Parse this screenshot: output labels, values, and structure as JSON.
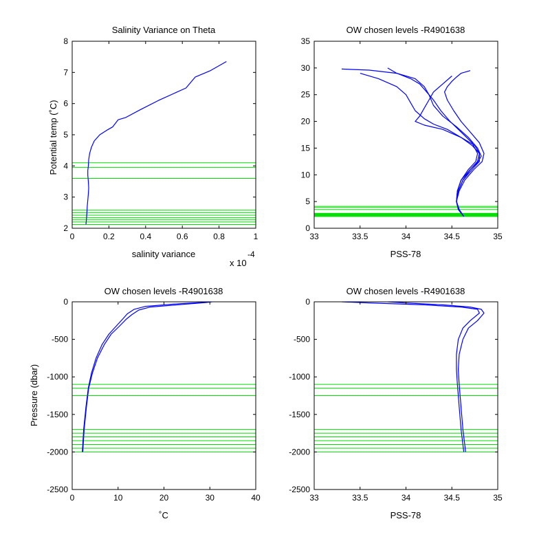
{
  "chart_data": [
    {
      "type": "line",
      "title": "Salinity Variance on Theta",
      "xlabel": "salinity variance",
      "xscale_note": "x 10",
      "xscale_exp": "-4",
      "ylabel": "Potential temp (˚C)",
      "xlim": [
        0,
        1
      ],
      "ylim": [
        2,
        8
      ],
      "xticks": [
        0,
        0.2,
        0.4,
        0.6,
        0.8,
        1
      ],
      "yticks": [
        2,
        3,
        4,
        5,
        6,
        7,
        8
      ],
      "xtick_labels": [
        "0",
        "0.2",
        "0.4",
        "0.6",
        "0.8",
        "1"
      ],
      "ytick_labels": [
        "2",
        "3",
        "4",
        "5",
        "6",
        "7",
        "8"
      ],
      "y_reversed": false,
      "grid": false,
      "hlines": [
        4.1,
        3.95,
        3.6,
        2.58,
        2.5,
        2.42,
        2.34,
        2.27,
        2.2,
        2.12
      ],
      "series": [
        {
          "color": "#0000ff",
          "x": [
            0.075,
            0.078,
            0.08,
            0.082,
            0.085,
            0.088,
            0.09,
            0.088,
            0.085,
            0.085,
            0.088,
            0.09,
            0.095,
            0.105,
            0.12,
            0.15,
            0.19,
            0.22,
            0.25,
            0.29,
            0.37,
            0.47,
            0.62,
            0.67,
            0.75,
            0.84
          ],
          "y": [
            2.12,
            2.3,
            2.5,
            2.7,
            2.9,
            3.1,
            3.3,
            3.5,
            3.7,
            3.85,
            4.0,
            4.2,
            4.4,
            4.6,
            4.8,
            5.0,
            5.15,
            5.25,
            5.48,
            5.55,
            5.8,
            6.1,
            6.5,
            6.85,
            7.05,
            7.35
          ]
        }
      ]
    },
    {
      "type": "line",
      "title": "OW chosen levels -R4901638",
      "xlabel": "PSS-78",
      "ylabel": "",
      "xlim": [
        33,
        35
      ],
      "ylim": [
        0,
        35
      ],
      "xticks": [
        33,
        33.5,
        34,
        34.5,
        35
      ],
      "yticks": [
        0,
        5,
        10,
        15,
        20,
        25,
        30,
        35
      ],
      "xtick_labels": [
        "33",
        "33.5",
        "34",
        "34.5",
        "35"
      ],
      "ytick_labels": [
        "0",
        "5",
        "10",
        "15",
        "20",
        "25",
        "30",
        "35"
      ],
      "y_reversed": false,
      "grid": false,
      "hlines": [
        4.1,
        3.9,
        3.5,
        2.8,
        2.7,
        2.6,
        2.5,
        2.4,
        2.3,
        2.2
      ],
      "series": [
        {
          "color": "#0000ff",
          "x": [
            34.63,
            34.58,
            34.55,
            34.56,
            34.6,
            34.7,
            34.78,
            34.82,
            34.78,
            34.68,
            34.55,
            34.4,
            34.3,
            34.25,
            34.2,
            34.1,
            33.9,
            33.6,
            33.3
          ],
          "y": [
            2.2,
            3.5,
            5.0,
            7.0,
            9.0,
            11.0,
            12.3,
            13.5,
            15.0,
            17.0,
            19.0,
            21.0,
            23.0,
            25.0,
            26.5,
            28.0,
            29.0,
            29.6,
            29.8
          ]
        },
        {
          "color": "#0000ff",
          "x": [
            34.63,
            34.57,
            34.55,
            34.58,
            34.64,
            34.74,
            34.83,
            34.85,
            34.8,
            34.7,
            34.6,
            34.52,
            34.45,
            34.42,
            34.45,
            34.5,
            34.55,
            34.6,
            34.7
          ],
          "y": [
            2.2,
            3.5,
            5.0,
            7.0,
            9.0,
            11.0,
            12.5,
            14.0,
            16.0,
            18.0,
            20.0,
            22.0,
            24.0,
            25.5,
            26.5,
            27.5,
            28.3,
            29.0,
            29.5
          ]
        },
        {
          "color": "#0000ff",
          "x": [
            34.63,
            34.58,
            34.55,
            34.57,
            34.62,
            34.72,
            34.8,
            34.8,
            34.72,
            34.6,
            34.45,
            34.3,
            34.2,
            34.1,
            34.05,
            34.0,
            33.9,
            33.7,
            33.5
          ],
          "y": [
            2.2,
            3.5,
            5.0,
            7.0,
            9.0,
            11.0,
            12.5,
            14.0,
            15.5,
            17.0,
            18.5,
            19.5,
            20.5,
            22.0,
            23.5,
            25.0,
            26.5,
            28.0,
            29.0
          ]
        },
        {
          "color": "#0000ff",
          "x": [
            34.63,
            34.57,
            34.55,
            34.57,
            34.62,
            34.7,
            34.78,
            34.8,
            34.75,
            34.6,
            34.4,
            34.2,
            34.1,
            34.15,
            34.2,
            34.25,
            34.3,
            34.4,
            34.5
          ],
          "y": [
            2.2,
            3.5,
            5.0,
            7.0,
            9.0,
            11.0,
            12.5,
            14.0,
            15.5,
            17.0,
            18.5,
            19.3,
            20.0,
            21.0,
            22.5,
            24.0,
            25.5,
            27.0,
            28.5
          ]
        },
        {
          "color": "#0000ff",
          "x": [
            34.63,
            34.58,
            34.55,
            34.56,
            34.6,
            34.68,
            34.76,
            34.78,
            34.72,
            34.6,
            34.48,
            34.38,
            34.3,
            34.25,
            34.2,
            34.15,
            34.05,
            33.9,
            33.8
          ],
          "y": [
            2.2,
            3.5,
            5.0,
            7.0,
            9.0,
            11.0,
            12.5,
            14.0,
            16.0,
            18.0,
            20.0,
            22.0,
            24.0,
            25.0,
            26.0,
            27.0,
            28.0,
            29.0,
            30.0
          ]
        }
      ]
    },
    {
      "type": "line",
      "title": "OW chosen levels -R4901638",
      "xlabel": "˚C",
      "ylabel": "Pressure (dbar)",
      "xlim": [
        0,
        40
      ],
      "ylim": [
        -2500,
        0
      ],
      "xticks": [
        0,
        10,
        20,
        30,
        40
      ],
      "yticks": [
        0,
        -500,
        -1000,
        -1500,
        -2000,
        -2500
      ],
      "xtick_labels": [
        "0",
        "10",
        "20",
        "30",
        "40"
      ],
      "ytick_labels": [
        "0",
        "-500",
        "-1000",
        "-1500",
        "-2000",
        "-2500"
      ],
      "y_reversed": false,
      "grid": false,
      "hlines": [
        -1100,
        -1150,
        -1250,
        -1700,
        -1750,
        -1800,
        -1850,
        -1900,
        -1950,
        -2000
      ],
      "series": [
        {
          "color": "#0000ff",
          "x": [
            2.2,
            2.5,
            3.0,
            3.5,
            4.2,
            5.2,
            6.5,
            8.0,
            9.5,
            11.0,
            12.0,
            13.5,
            16.0,
            22.0,
            28.0,
            30.0
          ],
          "y": [
            -2000,
            -1700,
            -1400,
            -1150,
            -950,
            -750,
            -570,
            -430,
            -330,
            -230,
            -160,
            -100,
            -60,
            -30,
            -10,
            0
          ]
        },
        {
          "color": "#0000ff",
          "x": [
            2.3,
            2.6,
            3.1,
            3.6,
            4.4,
            5.5,
            7.0,
            8.5,
            10.2,
            11.8,
            13.0,
            14.5,
            17.0,
            24.0,
            29.0,
            30.5
          ],
          "y": [
            -2000,
            -1700,
            -1400,
            -1150,
            -950,
            -750,
            -570,
            -430,
            -330,
            -230,
            -170,
            -110,
            -70,
            -35,
            -10,
            0
          ]
        }
      ]
    },
    {
      "type": "line",
      "title": "OW chosen levels -R4901638",
      "xlabel": "PSS-78",
      "ylabel": "",
      "xlim": [
        33,
        35
      ],
      "ylim": [
        -2500,
        0
      ],
      "xticks": [
        33,
        33.5,
        34,
        34.5,
        35
      ],
      "yticks": [
        0,
        -500,
        -1000,
        -1500,
        -2000,
        -2500
      ],
      "xtick_labels": [
        "33",
        "33.5",
        "34",
        "34.5",
        "35"
      ],
      "ytick_labels": [
        "0",
        "-500",
        "-1000",
        "-1500",
        "-2000",
        "-2500"
      ],
      "y_reversed": false,
      "grid": false,
      "hlines": [
        -1100,
        -1150,
        -1250,
        -1700,
        -1750,
        -1800,
        -1850,
        -1900,
        -1950,
        -2000
      ],
      "series": [
        {
          "color": "#0000ff",
          "x": [
            34.63,
            34.6,
            34.58,
            34.56,
            34.55,
            34.55,
            34.57,
            34.62,
            34.7,
            34.8,
            34.78,
            34.6,
            34.2,
            33.6,
            33.3
          ],
          "y": [
            -2000,
            -1700,
            -1400,
            -1100,
            -900,
            -700,
            -500,
            -350,
            -250,
            -150,
            -100,
            -70,
            -40,
            -15,
            0
          ]
        },
        {
          "color": "#0000ff",
          "x": [
            34.65,
            34.62,
            34.6,
            34.58,
            34.57,
            34.58,
            34.62,
            34.68,
            34.78,
            34.85,
            34.82,
            34.7,
            34.4,
            34.0,
            33.8
          ],
          "y": [
            -2000,
            -1700,
            -1400,
            -1100,
            -900,
            -700,
            -500,
            -350,
            -250,
            -150,
            -100,
            -70,
            -40,
            -15,
            0
          ]
        }
      ]
    }
  ]
}
